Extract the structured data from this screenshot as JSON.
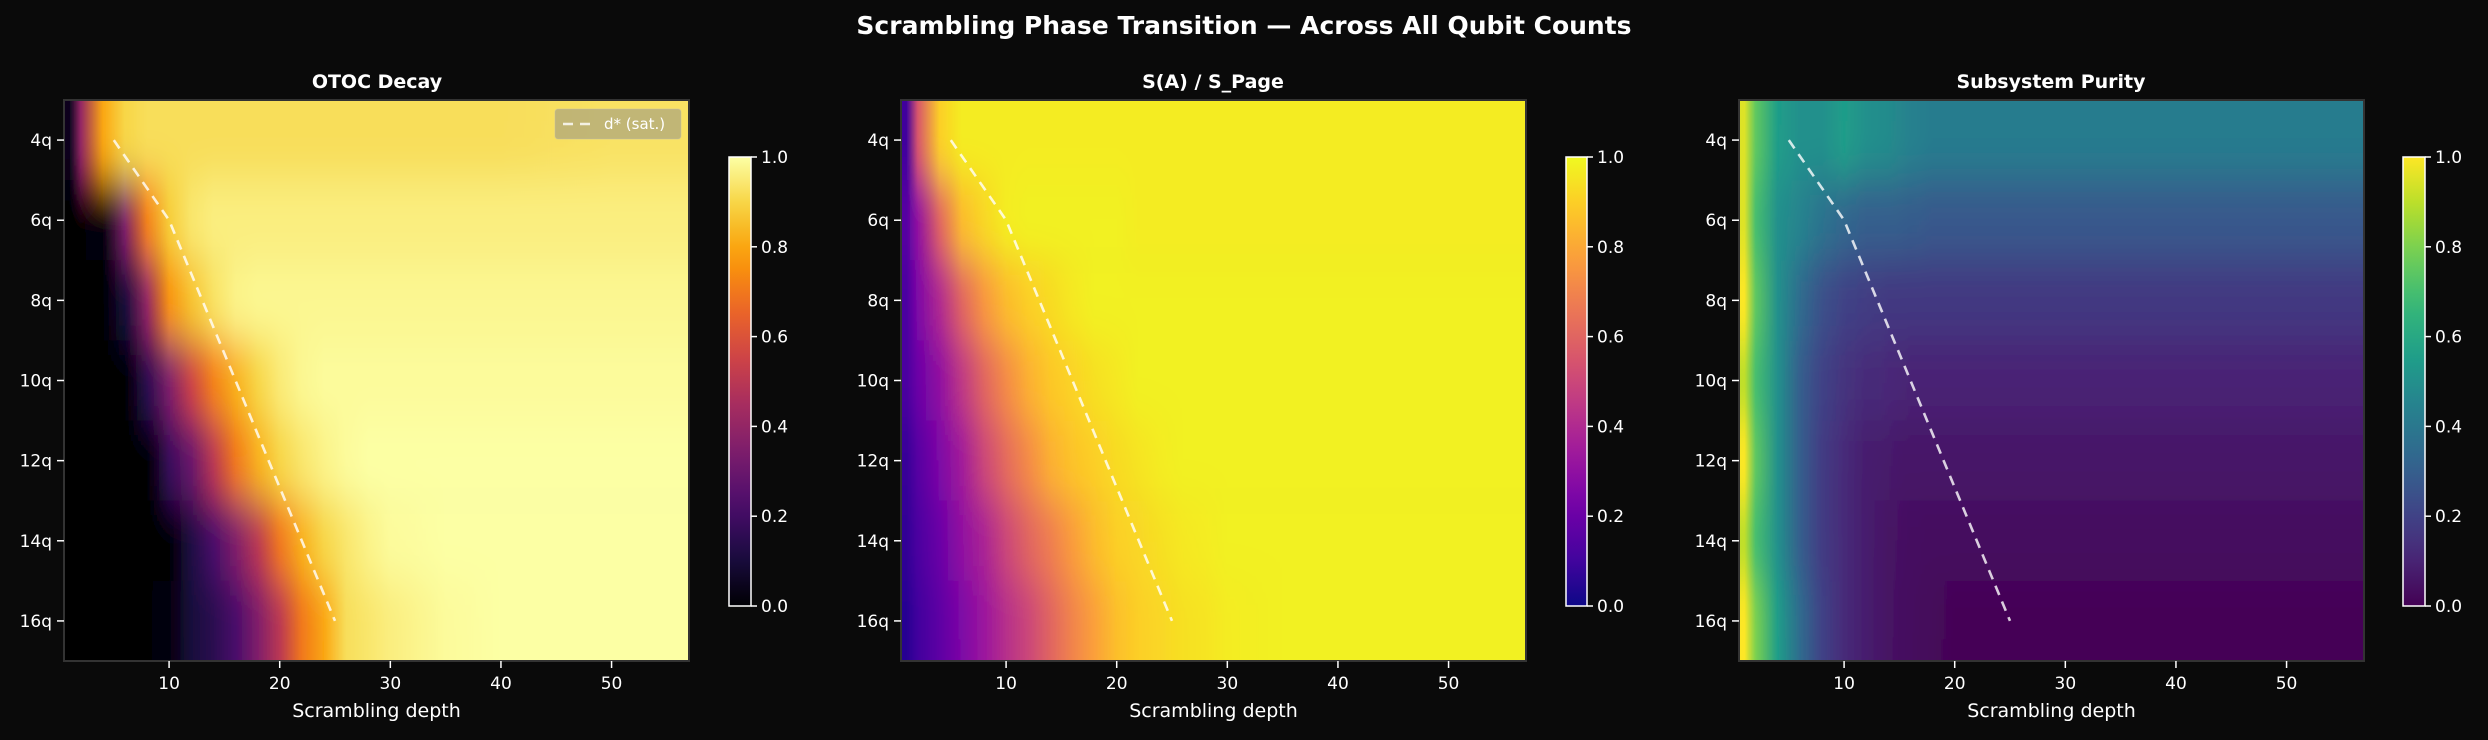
{
  "title": "Scrambling Phase Transition — Across All Qubit Counts",
  "colors": {
    "background": "#0a0a0a",
    "text": "#ffffff",
    "frame": "#333333",
    "guide_line": "#ffffff"
  },
  "chart_data": [
    {
      "type": "heatmap",
      "title": "OTOC Decay",
      "xlabel": "Scrambling depth",
      "ylabel": "",
      "colormap": "inferno",
      "clim": [
        0,
        1
      ],
      "xlim": [
        0.5,
        57
      ],
      "xticks": [
        10,
        20,
        30,
        40,
        50
      ],
      "ytick_labels": [
        "4q",
        "6q",
        "8q",
        "10q",
        "12q",
        "14q",
        "16q"
      ],
      "colorbar_ticks": [
        "0.0",
        "0.2",
        "0.4",
        "0.6",
        "0.8",
        "1.0"
      ],
      "legend": {
        "entries": [
          "d* (sat.)"
        ],
        "position": "upper right"
      },
      "guide_line": {
        "name": "d* (sat.)",
        "style": "dashed",
        "qubits": [
          4,
          6,
          8,
          10,
          12,
          14,
          16
        ],
        "depth": [
          5,
          10,
          13,
          16,
          19,
          22,
          25
        ]
      },
      "depths": [
        1,
        2,
        4,
        6,
        8,
        10,
        12,
        14,
        16,
        18,
        20,
        22,
        24,
        26,
        28,
        30,
        35,
        40,
        50,
        56
      ],
      "rows": [
        {
          "qubits": 4,
          "values": [
            0.05,
            0.4,
            0.8,
            0.9,
            0.92,
            0.92,
            0.92,
            0.92,
            0.92,
            0.92,
            0.92,
            0.92,
            0.92,
            0.92,
            0.92,
            0.92,
            0.92,
            0.92,
            0.93,
            0.93
          ]
        },
        {
          "qubits": 6,
          "values": [
            0,
            0,
            0.02,
            0.35,
            0.72,
            0.88,
            0.94,
            0.96,
            0.96,
            0.96,
            0.96,
            0.96,
            0.96,
            0.96,
            0.96,
            0.96,
            0.96,
            0.96,
            0.96,
            0.96
          ]
        },
        {
          "qubits": 8,
          "values": [
            0,
            0,
            0,
            0.1,
            0.4,
            0.76,
            0.86,
            0.93,
            0.97,
            0.98,
            0.98,
            0.98,
            0.98,
            0.98,
            0.98,
            0.98,
            0.98,
            0.98,
            0.98,
            0.98
          ]
        },
        {
          "qubits": 10,
          "values": [
            0,
            0,
            0,
            0,
            0.15,
            0.35,
            0.55,
            0.72,
            0.82,
            0.9,
            0.95,
            0.98,
            0.99,
            0.99,
            0.99,
            0.99,
            0.99,
            0.99,
            0.99,
            0.99
          ]
        },
        {
          "qubits": 12,
          "values": [
            0,
            0,
            0,
            0,
            0,
            0.18,
            0.3,
            0.5,
            0.7,
            0.82,
            0.9,
            0.94,
            0.97,
            0.99,
            1,
            1,
            1,
            1,
            1,
            1
          ]
        },
        {
          "qubits": 14,
          "values": [
            0,
            0,
            0,
            0,
            0,
            0,
            0.12,
            0.22,
            0.35,
            0.5,
            0.7,
            0.82,
            0.9,
            0.94,
            0.97,
            0.99,
            1,
            1,
            1,
            1
          ]
        },
        {
          "qubits": 16,
          "values": [
            0,
            0,
            0,
            0,
            0,
            0.02,
            0.1,
            0.15,
            0.22,
            0.35,
            0.5,
            0.7,
            0.8,
            0.92,
            0.94,
            0.96,
            0.99,
            1,
            1,
            1
          ]
        }
      ]
    },
    {
      "type": "heatmap",
      "title": "S(A) / S_Page",
      "xlabel": "Scrambling depth",
      "ylabel": "",
      "colormap": "plasma",
      "clim": [
        0,
        1
      ],
      "xlim": [
        0.5,
        57
      ],
      "xticks": [
        10,
        20,
        30,
        40,
        50
      ],
      "ytick_labels": [
        "4q",
        "6q",
        "8q",
        "10q",
        "12q",
        "14q",
        "16q"
      ],
      "colorbar_ticks": [
        "0.0",
        "0.2",
        "0.4",
        "0.6",
        "0.8",
        "1.0"
      ],
      "guide_line": {
        "style": "dashed",
        "qubits": [
          4,
          6,
          8,
          10,
          12,
          14,
          16
        ],
        "depth": [
          5,
          10,
          13,
          16,
          19,
          22,
          25
        ]
      },
      "depths": [
        1,
        2,
        4,
        6,
        8,
        10,
        12,
        14,
        16,
        18,
        20,
        22,
        24,
        26,
        28,
        30,
        35,
        40,
        50,
        56
      ],
      "rows": [
        {
          "qubits": 4,
          "values": [
            0.1,
            0.55,
            0.9,
            0.97,
            0.97,
            0.97,
            0.97,
            0.97,
            0.97,
            0.97,
            0.97,
            0.97,
            0.97,
            0.97,
            0.97,
            0.97,
            0.97,
            0.97,
            0.97,
            0.97
          ]
        },
        {
          "qubits": 6,
          "values": [
            0.15,
            0.3,
            0.6,
            0.85,
            0.92,
            0.97,
            0.98,
            0.98,
            0.98,
            0.98,
            0.98,
            0.97,
            0.97,
            0.97,
            0.97,
            0.97,
            0.97,
            0.97,
            0.97,
            0.97
          ]
        },
        {
          "qubits": 8,
          "values": [
            0.12,
            0.25,
            0.4,
            0.6,
            0.75,
            0.85,
            0.9,
            0.93,
            0.96,
            0.98,
            0.98,
            0.98,
            0.98,
            0.98,
            0.98,
            0.98,
            0.98,
            0.98,
            0.98,
            0.98
          ]
        },
        {
          "qubits": 10,
          "values": [
            0.12,
            0.2,
            0.3,
            0.45,
            0.6,
            0.72,
            0.82,
            0.88,
            0.91,
            0.94,
            0.96,
            0.98,
            0.98,
            0.98,
            0.98,
            0.98,
            0.98,
            0.98,
            0.98,
            0.98
          ]
        },
        {
          "qubits": 12,
          "values": [
            0.08,
            0.15,
            0.25,
            0.35,
            0.5,
            0.62,
            0.72,
            0.82,
            0.87,
            0.9,
            0.93,
            0.95,
            0.97,
            0.98,
            0.98,
            0.98,
            0.98,
            0.98,
            0.98,
            0.98
          ]
        },
        {
          "qubits": 14,
          "values": [
            0.07,
            0.12,
            0.2,
            0.3,
            0.38,
            0.5,
            0.6,
            0.68,
            0.77,
            0.85,
            0.9,
            0.92,
            0.94,
            0.96,
            0.97,
            0.98,
            0.98,
            0.98,
            0.98,
            0.98
          ]
        },
        {
          "qubits": 16,
          "values": [
            0.05,
            0.1,
            0.17,
            0.25,
            0.33,
            0.42,
            0.5,
            0.6,
            0.7,
            0.78,
            0.86,
            0.9,
            0.92,
            0.94,
            0.95,
            0.97,
            0.98,
            0.98,
            0.98,
            0.98
          ]
        }
      ]
    },
    {
      "type": "heatmap",
      "title": "Subsystem Purity",
      "xlabel": "Scrambling depth",
      "ylabel": "",
      "colormap": "viridis",
      "clim": [
        0,
        1
      ],
      "xlim": [
        0.5,
        57
      ],
      "xticks": [
        10,
        20,
        30,
        40,
        50
      ],
      "ytick_labels": [
        "4q",
        "6q",
        "8q",
        "10q",
        "12q",
        "14q",
        "16q"
      ],
      "colorbar_ticks": [
        "0.0",
        "0.2",
        "0.4",
        "0.6",
        "0.8",
        "1.0"
      ],
      "guide_line": {
        "style": "dashed",
        "qubits": [
          4,
          6,
          8,
          10,
          12,
          14,
          16
        ],
        "depth": [
          5,
          10,
          13,
          16,
          19,
          22,
          25
        ]
      },
      "depths": [
        1,
        2,
        4,
        6,
        8,
        10,
        12,
        14,
        16,
        18,
        20,
        22,
        24,
        26,
        28,
        30,
        35,
        40,
        50,
        56
      ],
      "rows": [
        {
          "qubits": 4,
          "values": [
            0.95,
            0.75,
            0.55,
            0.5,
            0.5,
            0.55,
            0.5,
            0.48,
            0.44,
            0.42,
            0.42,
            0.42,
            0.42,
            0.42,
            0.42,
            0.42,
            0.42,
            0.42,
            0.42,
            0.42
          ]
        },
        {
          "qubits": 6,
          "values": [
            0.95,
            0.7,
            0.5,
            0.45,
            0.38,
            0.33,
            0.3,
            0.3,
            0.29,
            0.28,
            0.28,
            0.28,
            0.28,
            0.28,
            0.28,
            0.28,
            0.28,
            0.28,
            0.28,
            0.28
          ]
        },
        {
          "qubits": 8,
          "values": [
            1.0,
            0.75,
            0.5,
            0.35,
            0.25,
            0.2,
            0.18,
            0.17,
            0.17,
            0.17,
            0.17,
            0.17,
            0.17,
            0.17,
            0.17,
            0.17,
            0.17,
            0.17,
            0.17,
            0.17
          ]
        },
        {
          "qubits": 10,
          "values": [
            0.9,
            0.7,
            0.5,
            0.3,
            0.2,
            0.15,
            0.12,
            0.11,
            0.1,
            0.1,
            0.1,
            0.1,
            0.1,
            0.1,
            0.1,
            0.1,
            0.1,
            0.1,
            0.1,
            0.1
          ]
        },
        {
          "qubits": 12,
          "values": [
            1.0,
            0.75,
            0.5,
            0.3,
            0.18,
            0.12,
            0.08,
            0.07,
            0.06,
            0.06,
            0.06,
            0.06,
            0.06,
            0.06,
            0.06,
            0.06,
            0.06,
            0.06,
            0.06,
            0.06
          ]
        },
        {
          "qubits": 14,
          "values": [
            0.9,
            0.7,
            0.5,
            0.3,
            0.18,
            0.12,
            0.08,
            0.05,
            0.04,
            0.03,
            0.03,
            0.03,
            0.03,
            0.03,
            0.03,
            0.03,
            0.03,
            0.03,
            0.03,
            0.03
          ]
        },
        {
          "qubits": 16,
          "values": [
            1.0,
            0.8,
            0.55,
            0.35,
            0.2,
            0.12,
            0.08,
            0.05,
            0.03,
            0.02,
            0.01,
            0.01,
            0.01,
            0.01,
            0.01,
            0.01,
            0.01,
            0.01,
            0.01,
            0.01
          ]
        }
      ]
    }
  ]
}
